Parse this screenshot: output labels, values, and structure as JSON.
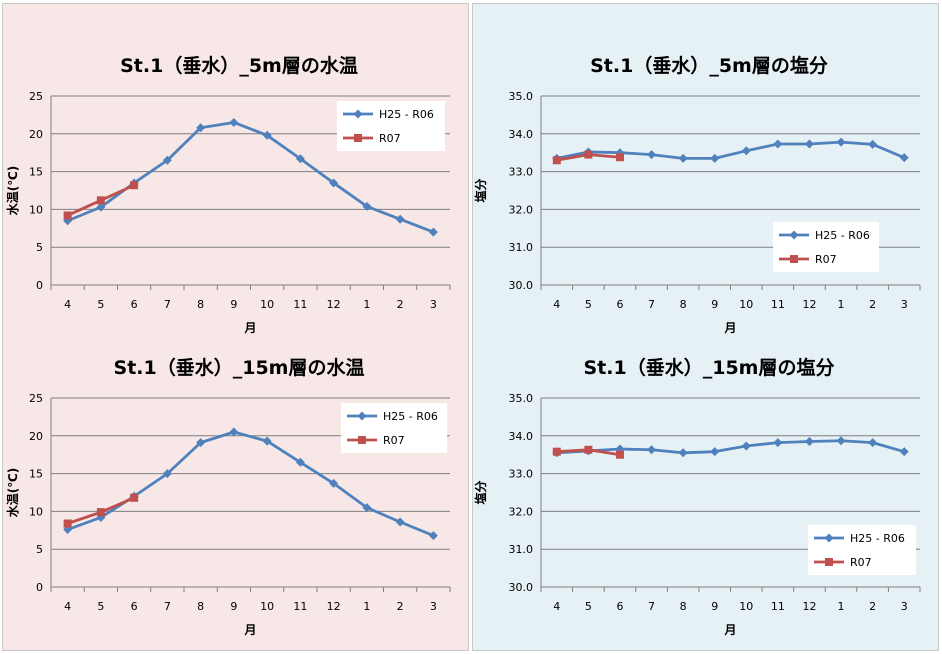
{
  "colors": {
    "left_panel_bg": "#f7e7e7",
    "right_panel_bg": "#e6f1f6",
    "panel_border": "#c8c8c8",
    "series_1": "#4f81bd",
    "series_2": "#c0504d",
    "grid": "#7f7f7f"
  },
  "legend_labels": [
    "H25 - R06",
    "R07"
  ],
  "chart_data": [
    {
      "id": "temp-5m",
      "type": "line",
      "title": "St.1（垂水）_5m層の水温",
      "xlabel": "月",
      "ylabel": "水温(℃)",
      "categories": [
        "4",
        "5",
        "6",
        "7",
        "8",
        "9",
        "10",
        "11",
        "12",
        "1",
        "2",
        "3"
      ],
      "ylim": [
        0,
        25
      ],
      "yticks": [
        "0",
        "5",
        "10",
        "15",
        "20",
        "25"
      ],
      "grid": "horizontal",
      "legend_position": "top-right",
      "series": [
        {
          "name": "H25 - R06",
          "color": "#4f81bd",
          "marker": "diamond",
          "values": [
            8.5,
            10.3,
            13.5,
            16.5,
            20.8,
            21.5,
            19.8,
            16.7,
            13.5,
            10.4,
            8.7,
            7.0
          ]
        },
        {
          "name": "R07",
          "color": "#c0504d",
          "marker": "square",
          "values": [
            9.2,
            11.2,
            13.2,
            null,
            null,
            null,
            null,
            null,
            null,
            null,
            null,
            null
          ]
        }
      ]
    },
    {
      "id": "salinity-5m",
      "type": "line",
      "title": "St.1（垂水）_5m層の塩分",
      "xlabel": "月",
      "ylabel": "塩分",
      "categories": [
        "4",
        "5",
        "6",
        "7",
        "8",
        "9",
        "10",
        "11",
        "12",
        "1",
        "2",
        "3"
      ],
      "ylim": [
        30.0,
        35.0
      ],
      "yticks": [
        "30.0",
        "31.0",
        "32.0",
        "33.0",
        "34.0",
        "35.0"
      ],
      "grid": "horizontal",
      "legend_position": "bottom-right",
      "series": [
        {
          "name": "H25 - R06",
          "color": "#4f81bd",
          "marker": "diamond",
          "values": [
            33.35,
            33.52,
            33.5,
            33.45,
            33.35,
            33.35,
            33.55,
            33.73,
            33.73,
            33.78,
            33.72,
            33.37
          ]
        },
        {
          "name": "R07",
          "color": "#c0504d",
          "marker": "square",
          "values": [
            33.3,
            33.45,
            33.38,
            null,
            null,
            null,
            null,
            null,
            null,
            null,
            null,
            null
          ]
        }
      ]
    },
    {
      "id": "temp-15m",
      "type": "line",
      "title": "St.1（垂水）_15m層の水温",
      "xlabel": "月",
      "ylabel": "水温(℃)",
      "categories": [
        "4",
        "5",
        "6",
        "7",
        "8",
        "9",
        "10",
        "11",
        "12",
        "1",
        "2",
        "3"
      ],
      "ylim": [
        0,
        25
      ],
      "yticks": [
        "0",
        "5",
        "10",
        "15",
        "20",
        "25"
      ],
      "grid": "horizontal",
      "legend_position": "top-right",
      "series": [
        {
          "name": "H25 - R06",
          "color": "#4f81bd",
          "marker": "diamond",
          "values": [
            7.6,
            9.2,
            12.0,
            15.0,
            19.1,
            20.5,
            19.3,
            16.5,
            13.7,
            10.5,
            8.6,
            6.8
          ]
        },
        {
          "name": "R07",
          "color": "#c0504d",
          "marker": "square",
          "values": [
            8.4,
            9.9,
            11.8,
            null,
            null,
            null,
            null,
            null,
            null,
            null,
            null,
            null
          ]
        }
      ]
    },
    {
      "id": "salinity-15m",
      "type": "line",
      "title": "St.1（垂水）_15m層の塩分",
      "xlabel": "月",
      "ylabel": "塩分",
      "categories": [
        "4",
        "5",
        "6",
        "7",
        "8",
        "9",
        "10",
        "11",
        "12",
        "1",
        "2",
        "3"
      ],
      "ylim": [
        30.0,
        35.0
      ],
      "yticks": [
        "30.0",
        "31.0",
        "32.0",
        "33.0",
        "34.0",
        "35.0"
      ],
      "grid": "horizontal",
      "legend_position": "bottom-right",
      "series": [
        {
          "name": "H25 - R06",
          "color": "#4f81bd",
          "marker": "diamond",
          "values": [
            33.55,
            33.6,
            33.65,
            33.63,
            33.55,
            33.58,
            33.73,
            33.82,
            33.85,
            33.87,
            33.82,
            33.58
          ]
        },
        {
          "name": "R07",
          "color": "#c0504d",
          "marker": "square",
          "values": [
            33.58,
            33.63,
            33.5,
            null,
            null,
            null,
            null,
            null,
            null,
            null,
            null,
            null
          ]
        }
      ]
    }
  ]
}
